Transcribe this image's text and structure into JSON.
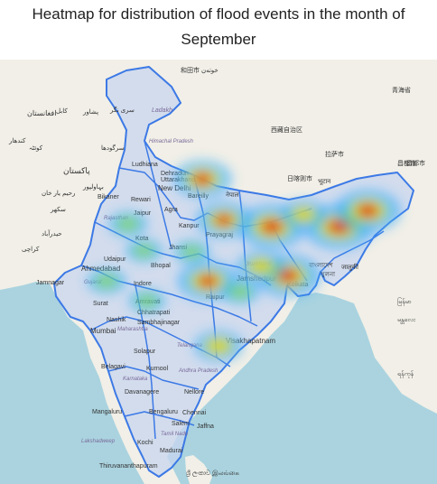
{
  "title_line1": "Heatmap for distribution of flood events in the month of",
  "title_line2": "September",
  "colors": {
    "land": "#f1efe7",
    "sea": "#aad3df",
    "border": "#3c79e6",
    "state_fill": "#c7d6ef",
    "heat_low": "#3aa8ff",
    "heat_mid": "#ffd400",
    "heat_high": "#e0201a"
  },
  "labels": [
    {
      "id": "afghanistan",
      "text": "افغانستان"
    },
    {
      "id": "kabul",
      "text": "کابل"
    },
    {
      "id": "peshawar",
      "text": "پشاور"
    },
    {
      "id": "quetta",
      "text": "کوئٹہ"
    },
    {
      "id": "kandahar",
      "text": "کندهار"
    },
    {
      "id": "sargodha",
      "text": "سرگودھا"
    },
    {
      "id": "pakistan",
      "text": "پاکستان"
    },
    {
      "id": "bahawalpur",
      "text": "بہاولپور"
    },
    {
      "id": "rahim",
      "text": "رحیم یار خان"
    },
    {
      "id": "sukkur",
      "text": "سکھر"
    },
    {
      "id": "hyderabad_pk",
      "text": "حیدرآباد"
    },
    {
      "id": "karachi",
      "text": "کراچی"
    },
    {
      "id": "hotan",
      "text": "和田市 خوتەن"
    },
    {
      "id": "xizang",
      "text": "西藏自治区"
    },
    {
      "id": "qinghai",
      "text": "青海省"
    },
    {
      "id": "rikaze",
      "text": "日喀则市"
    },
    {
      "id": "lhasa",
      "text": "拉萨市"
    },
    {
      "id": "changdu",
      "text": "昌都市"
    },
    {
      "id": "ladakh",
      "text": "Ladakh"
    },
    {
      "id": "srinagar",
      "text": "سری نگر"
    },
    {
      "id": "himachal",
      "text": "Himachal Pradesh"
    },
    {
      "id": "ludhiana",
      "text": "Ludhiana"
    },
    {
      "id": "dehradun",
      "text": "Dehradun"
    },
    {
      "id": "uttarakhand",
      "text": "Uttarakhand"
    },
    {
      "id": "newdelhi",
      "text": "New Delhi"
    },
    {
      "id": "bikaner",
      "text": "Bikaner"
    },
    {
      "id": "rewari",
      "text": "Rewari"
    },
    {
      "id": "jaipur",
      "text": "Jaipur"
    },
    {
      "id": "rajasthan",
      "text": "Rajasthan"
    },
    {
      "id": "agra",
      "text": "Agra"
    },
    {
      "id": "bareilly",
      "text": "Bareilly"
    },
    {
      "id": "kanpur",
      "text": "Kanpur"
    },
    {
      "id": "prayagraj",
      "text": "Prayagraj"
    },
    {
      "id": "nepal",
      "text": "नेपाल"
    },
    {
      "id": "bhutan",
      "text": "भूटान"
    },
    {
      "id": "kota",
      "text": "Kota"
    },
    {
      "id": "udaipur",
      "text": "Udaipur"
    },
    {
      "id": "ahmedabad",
      "text": "Ahmedabad"
    },
    {
      "id": "gujarat",
      "text": "Gujarat"
    },
    {
      "id": "jamnagar",
      "text": "Jamnagar"
    },
    {
      "id": "bhopal",
      "text": "Bhopal"
    },
    {
      "id": "indore",
      "text": "Indore"
    },
    {
      "id": "jhansi",
      "text": "Jhansi"
    },
    {
      "id": "jharkhand",
      "text": "Jharkhand"
    },
    {
      "id": "jamshedpur",
      "text": "Jamshedpur"
    },
    {
      "id": "kolkata",
      "text": "Kolkata"
    },
    {
      "id": "bangladesh",
      "text": "বাংলাদেশ"
    },
    {
      "id": "khulna",
      "text": "খুলনা"
    },
    {
      "id": "surat",
      "text": "Surat"
    },
    {
      "id": "nashik",
      "text": "Nashik"
    },
    {
      "id": "mumbai",
      "text": "Mumbai"
    },
    {
      "id": "maharashtra",
      "text": "Maharashtra"
    },
    {
      "id": "amravati",
      "text": "Amravati"
    },
    {
      "id": "chhatrapati",
      "text": "Chhatrapati"
    },
    {
      "id": "sambhajinagar",
      "text": "Sambhajinagar"
    },
    {
      "id": "raipur",
      "text": "Raipur"
    },
    {
      "id": "visakhapatnam",
      "text": "Visakhapatnam"
    },
    {
      "id": "solapur",
      "text": "Solapur"
    },
    {
      "id": "telangana",
      "text": "Telangana"
    },
    {
      "id": "belagavi",
      "text": "Belagavi"
    },
    {
      "id": "kurnool",
      "text": "Kurnool"
    },
    {
      "id": "andhra",
      "text": "Andhra Pradesh"
    },
    {
      "id": "karnataka",
      "text": "Karnataka"
    },
    {
      "id": "davanagere",
      "text": "Davanagere"
    },
    {
      "id": "nellore",
      "text": "Nellore"
    },
    {
      "id": "mangaluru",
      "text": "Mangaluru"
    },
    {
      "id": "bengaluru",
      "text": "Bengaluru"
    },
    {
      "id": "chennai",
      "text": "Chennai"
    },
    {
      "id": "salem",
      "text": "Salem"
    },
    {
      "id": "tamilnadu",
      "text": "Tamil Nadu"
    },
    {
      "id": "lakshadweep",
      "text": "Lakshadweep"
    },
    {
      "id": "kochi",
      "text": "Kochi"
    },
    {
      "id": "madurai",
      "text": "Madurai"
    },
    {
      "id": "jaffna",
      "text": "Jaffna"
    },
    {
      "id": "thiruvananthapuram",
      "text": "Thiruvananthapuram"
    },
    {
      "id": "srilanka",
      "text": "ශ්‍රී ලංකාව இலங்கை"
    },
    {
      "id": "myanmar",
      "text": "မြန်မာ"
    },
    {
      "id": "yangon",
      "text": "ရန်ကုန်"
    },
    {
      "id": "mandalay",
      "text": "မန္တလေး"
    },
    {
      "id": "india_ne",
      "text": "जालुकी"
    },
    {
      "id": "china_ne",
      "text": "昌都市"
    }
  ],
  "heat_points": [
    {
      "name": "uttarakhand",
      "lon": 79.0,
      "lat": 30.0,
      "intensity": 0.75
    },
    {
      "name": "bihar",
      "lon": 85.5,
      "lat": 26.4,
      "intensity": 0.95
    },
    {
      "name": "lucknow",
      "lon": 81.0,
      "lat": 26.9,
      "intensity": 0.7
    },
    {
      "name": "assam",
      "lon": 91.8,
      "lat": 26.4,
      "intensity": 1.0
    },
    {
      "name": "arunachal",
      "lon": 94.5,
      "lat": 27.6,
      "intensity": 0.9
    },
    {
      "name": "sikkim",
      "lon": 88.5,
      "lat": 27.3,
      "intensity": 0.5
    },
    {
      "name": "west_bengal",
      "lon": 87.0,
      "lat": 22.7,
      "intensity": 0.9
    },
    {
      "name": "jharkhand",
      "lon": 84.5,
      "lat": 23.4,
      "intensity": 0.55
    },
    {
      "name": "mp_east",
      "lon": 79.5,
      "lat": 22.3,
      "intensity": 0.8
    },
    {
      "name": "rajasthan_w",
      "lon": 72.0,
      "lat": 26.6,
      "intensity": 0.35
    },
    {
      "name": "udaipur",
      "lon": 73.5,
      "lat": 24.6,
      "intensity": 0.3
    },
    {
      "name": "gujarat",
      "lon": 70.0,
      "lat": 22.3,
      "intensity": 0.35
    },
    {
      "name": "maharashtra",
      "lon": 73.8,
      "lat": 20.8,
      "intensity": 0.3
    },
    {
      "name": "telangana",
      "lon": 80.5,
      "lat": 17.4,
      "intensity": 0.55
    },
    {
      "name": "mp_central",
      "lon": 78.0,
      "lat": 24.5,
      "intensity": 0.3
    },
    {
      "name": "chhattisgarh",
      "lon": 82.5,
      "lat": 21.5,
      "intensity": 0.35
    }
  ]
}
